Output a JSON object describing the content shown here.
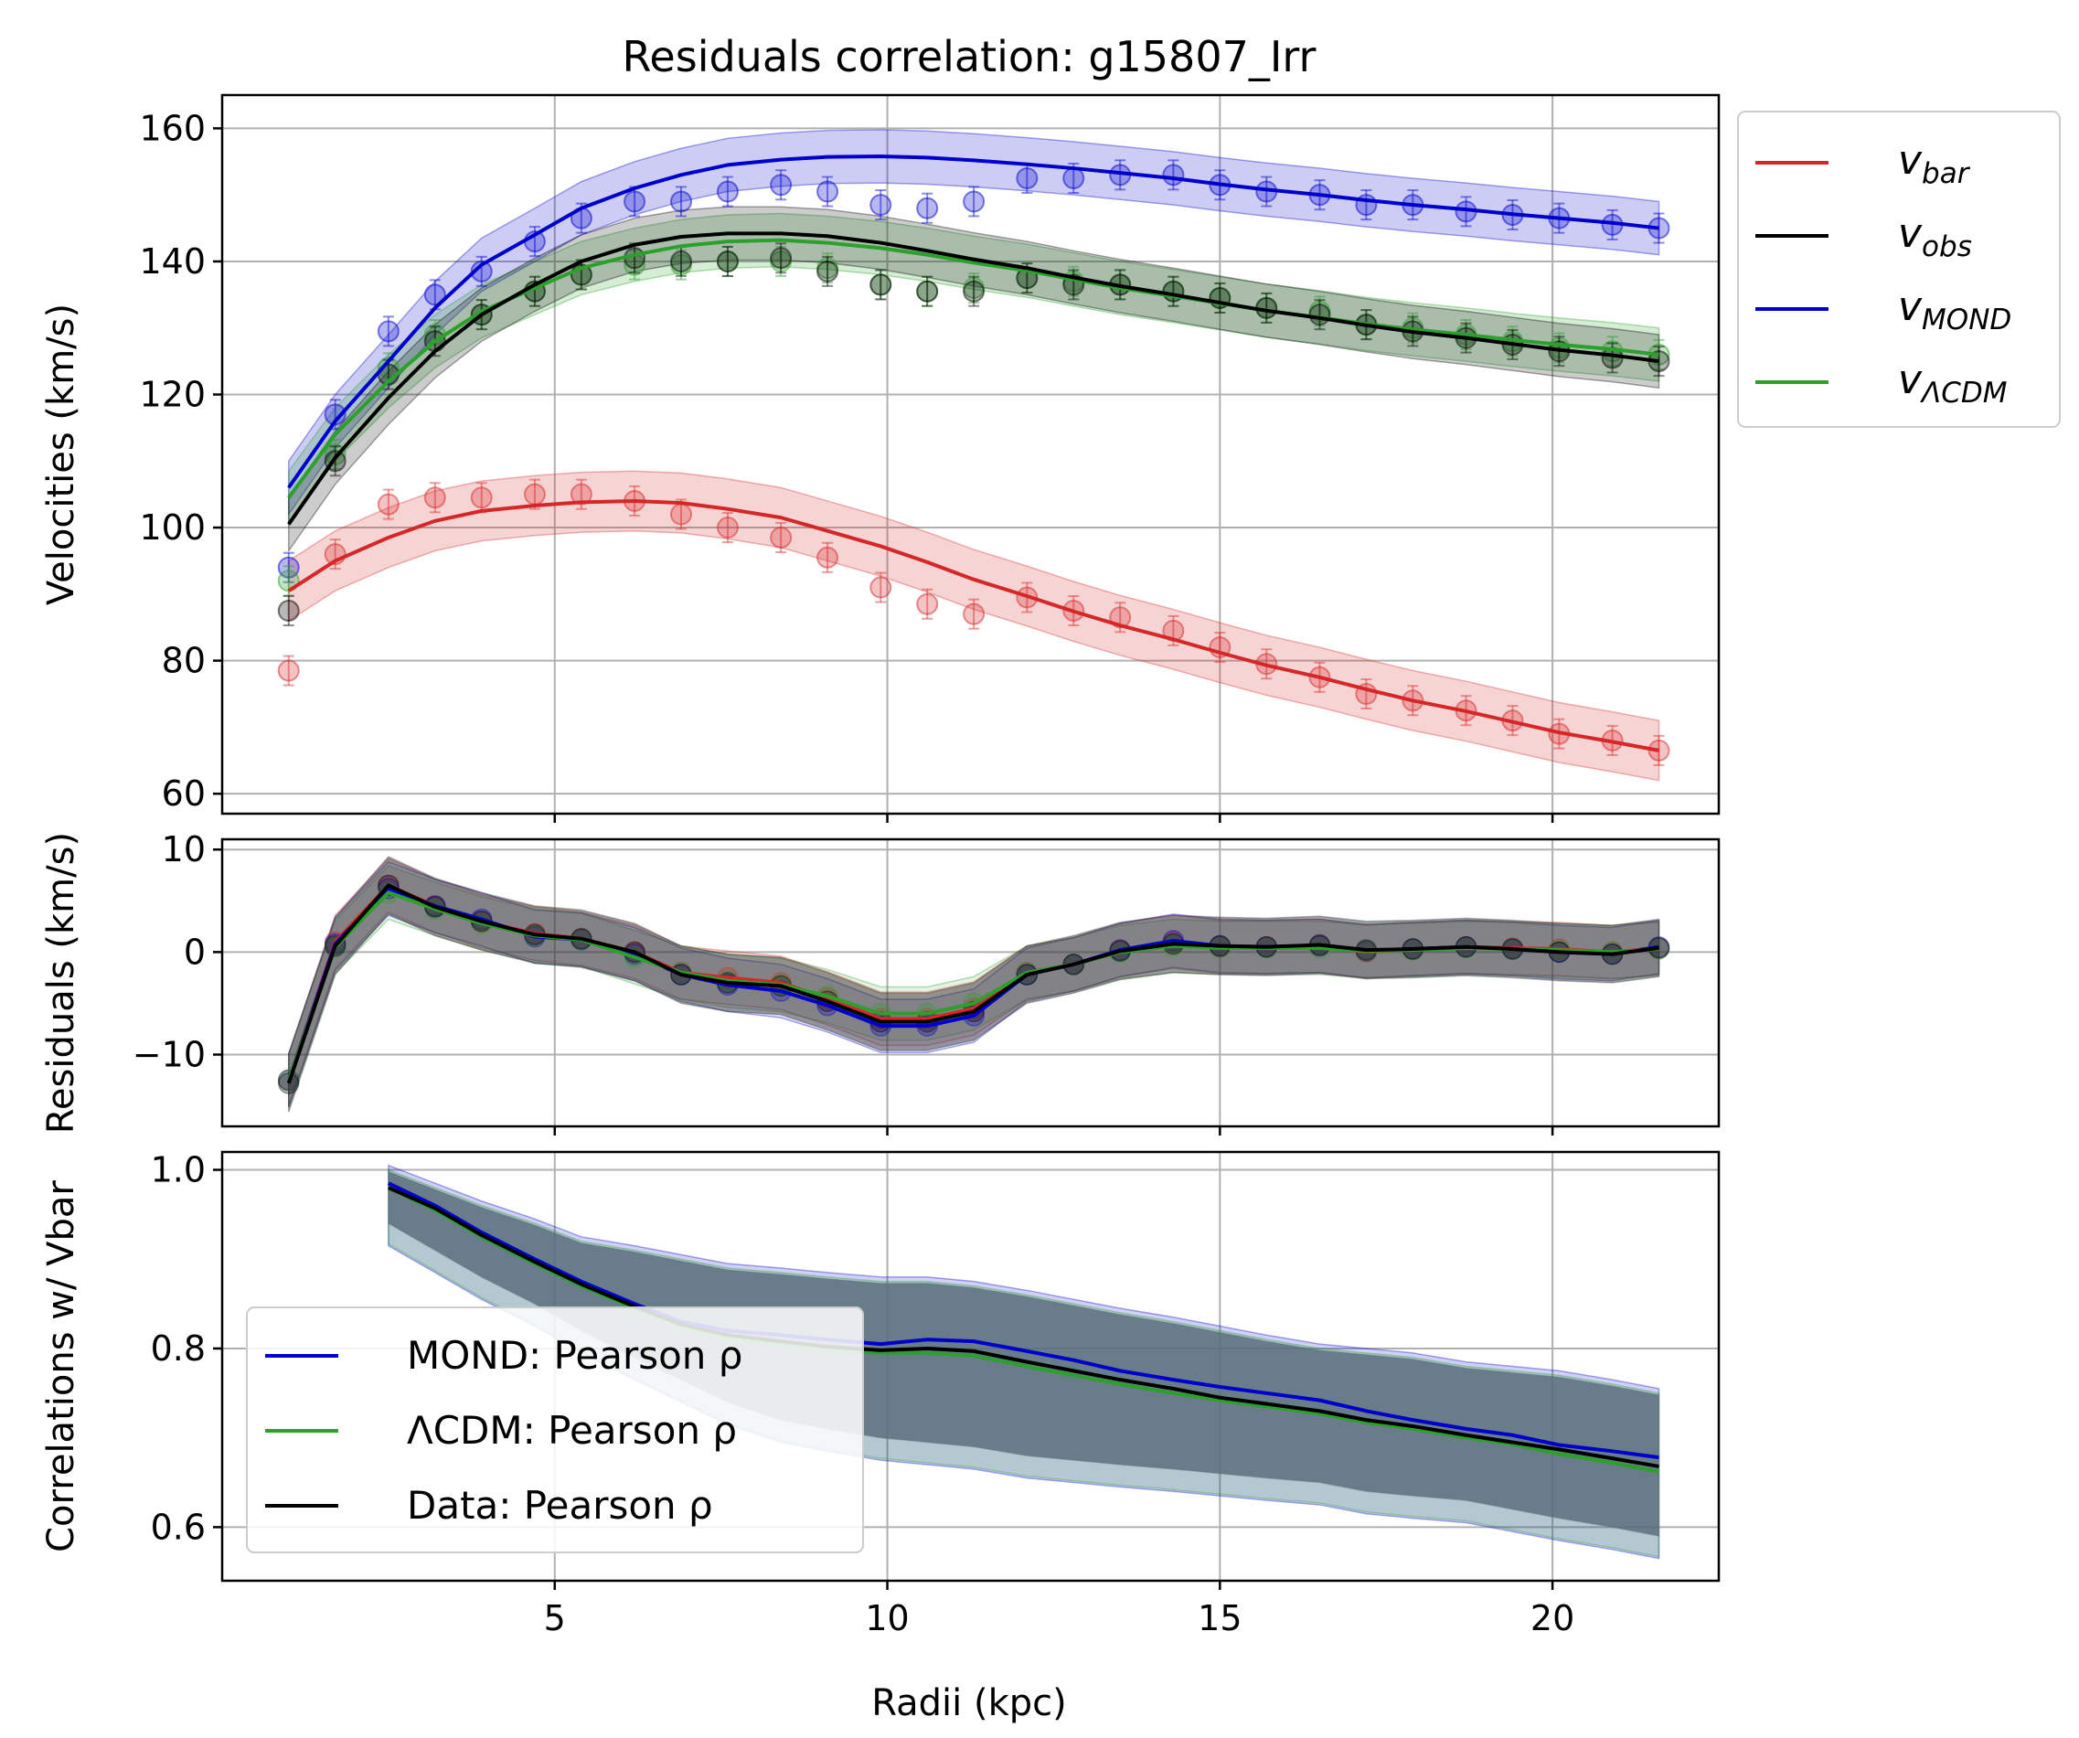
{
  "title": "Residuals correlation: g15807_Irr",
  "colors": {
    "bar": "#d62728",
    "obs": "#000000",
    "mond": "#0000cc",
    "lcdm": "#2ca02c",
    "corr_fill": "#5a707c"
  },
  "legend_top": {
    "placement": "outside-right",
    "entries": [
      {
        "key": "bar",
        "base": "v",
        "sub": "bar"
      },
      {
        "key": "obs",
        "base": "v",
        "sub": "obs"
      },
      {
        "key": "mond",
        "base": "v",
        "sub": "MOND"
      },
      {
        "key": "lcdm",
        "base": "v",
        "sub": "ΛCDM"
      }
    ]
  },
  "legend_bottom": {
    "placement": "lower-left",
    "entries": [
      {
        "key": "mond",
        "label": "MOND: Pearson ρ"
      },
      {
        "key": "lcdm",
        "label": "ΛCDM: Pearson ρ"
      },
      {
        "key": "obs",
        "label": "Data: Pearson ρ"
      }
    ]
  },
  "chart_data": [
    {
      "type": "line",
      "ylabel": "Velocities (km/s)",
      "xlim": [
        0,
        22.5
      ],
      "ylim": [
        57,
        165
      ],
      "yticks": [
        60,
        80,
        100,
        120,
        140,
        160
      ],
      "xticks": [
        5,
        10,
        15,
        20
      ],
      "grid": true,
      "x": [
        1.0,
        1.7,
        2.5,
        3.2,
        3.9,
        4.7,
        5.4,
        6.2,
        6.9,
        7.6,
        8.4,
        9.1,
        9.9,
        10.6,
        11.3,
        12.1,
        12.8,
        13.5,
        14.3,
        15.0,
        15.7,
        16.5,
        17.2,
        17.9,
        18.7,
        19.4,
        20.1,
        20.9,
        21.6
      ],
      "series": [
        {
          "key": "mond",
          "points": [
            94,
            117,
            129.5,
            135,
            138.5,
            143,
            146.5,
            149,
            149,
            150.5,
            151.5,
            150.5,
            148.5,
            148,
            149,
            152.5,
            152.5,
            153,
            153,
            151.5,
            150.5,
            150,
            148.5,
            148.5,
            147.5,
            147,
            146.5,
            145.5,
            145
          ],
          "curve": [
            106,
            116,
            125,
            133,
            139.5,
            144,
            148,
            151,
            153,
            154.5,
            155.3,
            155.7,
            155.8,
            155.6,
            155.2,
            154.6,
            154,
            153.3,
            152.5,
            151.6,
            150.8,
            150,
            149.2,
            148.5,
            147.8,
            147.1,
            146.5,
            145.8,
            145
          ]
        },
        {
          "key": "lcdm",
          "points": [
            92,
            111,
            124,
            129,
            132,
            135.5,
            138,
            139.5,
            139.5,
            140,
            140,
            139,
            136.5,
            135.5,
            136,
            137.5,
            137,
            136.5,
            135.5,
            134.5,
            133,
            132.5,
            130.5,
            130,
            129,
            128,
            127,
            126.5,
            126
          ],
          "curve": [
            104.5,
            114,
            122,
            128,
            132.5,
            136,
            139,
            141,
            142.3,
            143,
            143.2,
            142.8,
            142,
            141,
            139.8,
            138.6,
            137.3,
            136,
            134.8,
            133.7,
            132.6,
            131.6,
            130.6,
            129.8,
            129,
            128.2,
            127.5,
            126.8,
            126
          ]
        },
        {
          "key": "obs",
          "points": [
            87.5,
            110,
            123,
            128,
            132,
            135.5,
            138,
            140.5,
            140,
            140,
            140.5,
            138.5,
            136.5,
            135.5,
            135.5,
            137.5,
            136.5,
            136.5,
            135.5,
            134.5,
            133,
            132,
            130.5,
            129.5,
            128.5,
            127.5,
            126.5,
            125.5,
            125
          ],
          "curve": [
            100.5,
            110.5,
            119.5,
            126.5,
            132,
            136.5,
            140,
            142.5,
            143.7,
            144.2,
            144.2,
            143.8,
            142.8,
            141.6,
            140.3,
            139,
            137.6,
            136.3,
            135,
            133.8,
            132.6,
            131.5,
            130.4,
            129.4,
            128.5,
            127.6,
            126.7,
            125.9,
            125
          ]
        },
        {
          "key": "bar",
          "points": [
            78.5,
            96,
            103.5,
            104.5,
            104.5,
            105,
            105,
            104,
            102,
            100,
            98.5,
            95.5,
            91,
            88.5,
            87,
            89.5,
            87.5,
            86.5,
            84.5,
            82,
            79.5,
            77.5,
            75,
            74,
            72.5,
            71,
            69,
            68,
            66.5
          ],
          "curve": [
            90.5,
            95,
            98.5,
            101,
            102.5,
            103.3,
            103.8,
            104,
            103.7,
            102.8,
            101.5,
            99.5,
            97.2,
            94.8,
            92.2,
            89.7,
            87.4,
            85.3,
            83.2,
            81.2,
            79.3,
            77.5,
            75.7,
            74,
            72.4,
            70.8,
            69.2,
            67.8,
            66.5
          ]
        }
      ]
    },
    {
      "type": "line",
      "ylabel": "Residuals (km/s)",
      "xlim": [
        0,
        22.5
      ],
      "ylim": [
        -17,
        11
      ],
      "yticks": [
        -10,
        0,
        10
      ],
      "ytick_labels": [
        "−10",
        "0",
        "10"
      ],
      "xticks": [
        5,
        10,
        15,
        20
      ],
      "grid": true,
      "x": [
        1.0,
        1.7,
        2.5,
        3.2,
        3.9,
        4.7,
        5.4,
        6.2,
        6.9,
        7.6,
        8.4,
        9.1,
        9.9,
        10.6,
        11.3,
        12.1,
        12.8,
        13.5,
        14.3,
        15.0,
        15.7,
        16.5,
        17.2,
        17.9,
        18.7,
        19.4,
        20.1,
        20.9,
        21.6
      ],
      "series": [
        {
          "key": "bar",
          "values": [
            -12.5,
            1,
            6.5,
            4.5,
            3,
            1.8,
            1.3,
            0,
            -2,
            -2.5,
            -3,
            -4.5,
            -6.5,
            -6.5,
            -5.5,
            -2,
            -1.2,
            0.2,
            1,
            0.5,
            0.5,
            0.6,
            0,
            0.3,
            0.5,
            0.4,
            0.3,
            0,
            0.4
          ]
        },
        {
          "key": "mond",
          "values": [
            -12.5,
            0.8,
            6.2,
            4.5,
            3.2,
            1.5,
            1.2,
            -0.2,
            -2.2,
            -3.2,
            -3.8,
            -5.2,
            -7.2,
            -7.2,
            -6.2,
            -2.2,
            -1.2,
            0.2,
            1.1,
            0.6,
            0.5,
            0.6,
            0.1,
            0.3,
            0.5,
            0.3,
            0,
            -0.2,
            0.5
          ]
        },
        {
          "key": "lcdm",
          "values": [
            -12.5,
            0.5,
            5.8,
            4.2,
            2.8,
            1.6,
            1.2,
            -0.5,
            -2,
            -2.8,
            -3.2,
            -4.3,
            -6,
            -6,
            -5,
            -2,
            -1.2,
            0,
            0.6,
            0.4,
            0.4,
            0.4,
            0.1,
            0.2,
            0.4,
            0.3,
            0.2,
            0,
            0.3
          ]
        },
        {
          "key": "obs",
          "values": [
            -12.8,
            0.6,
            6.5,
            4.4,
            3,
            1.7,
            1.3,
            0,
            -2.2,
            -3,
            -3.3,
            -4.8,
            -6.8,
            -6.8,
            -5.8,
            -2.2,
            -1.2,
            0.1,
            0.8,
            0.6,
            0.5,
            0.7,
            0.2,
            0.3,
            0.5,
            0.3,
            0,
            -0.2,
            0.4
          ]
        }
      ]
    },
    {
      "type": "line",
      "ylabel": "Correlations w/ Vbar",
      "xlabel": "Radii (kpc)",
      "xlim": [
        0,
        22.5
      ],
      "ylim": [
        0.54,
        1.02
      ],
      "yticks": [
        0.6,
        0.8,
        1.0
      ],
      "ytick_labels": [
        "0.6",
        "0.8",
        "1.0"
      ],
      "xticks": [
        5,
        10,
        15,
        20
      ],
      "grid": true,
      "x": [
        2.5,
        3.2,
        3.9,
        4.7,
        5.4,
        6.2,
        6.9,
        7.6,
        8.4,
        9.1,
        9.9,
        10.6,
        11.3,
        12.1,
        12.8,
        13.5,
        14.3,
        15.0,
        15.7,
        16.5,
        17.2,
        17.9,
        18.7,
        19.4,
        20.1,
        20.9,
        21.6
      ],
      "band": {
        "upper": [
          1.0,
          0.98,
          0.96,
          0.94,
          0.92,
          0.91,
          0.9,
          0.89,
          0.885,
          0.88,
          0.875,
          0.875,
          0.87,
          0.86,
          0.85,
          0.84,
          0.83,
          0.82,
          0.81,
          0.8,
          0.795,
          0.79,
          0.78,
          0.775,
          0.77,
          0.76,
          0.75
        ],
        "lower": [
          0.92,
          0.89,
          0.86,
          0.83,
          0.8,
          0.77,
          0.745,
          0.72,
          0.7,
          0.69,
          0.68,
          0.675,
          0.67,
          0.66,
          0.655,
          0.65,
          0.645,
          0.64,
          0.635,
          0.63,
          0.62,
          0.615,
          0.61,
          0.6,
          0.59,
          0.58,
          0.57
        ]
      },
      "series": [
        {
          "key": "mond",
          "values": [
            0.985,
            0.96,
            0.93,
            0.9,
            0.875,
            0.85,
            0.83,
            0.82,
            0.815,
            0.81,
            0.805,
            0.81,
            0.808,
            0.797,
            0.787,
            0.775,
            0.765,
            0.757,
            0.75,
            0.742,
            0.73,
            0.72,
            0.71,
            0.703,
            0.692,
            0.685,
            0.678
          ]
        },
        {
          "key": "lcdm",
          "values": [
            0.98,
            0.955,
            0.925,
            0.895,
            0.87,
            0.845,
            0.825,
            0.812,
            0.805,
            0.8,
            0.795,
            0.795,
            0.792,
            0.78,
            0.77,
            0.76,
            0.75,
            0.742,
            0.735,
            0.727,
            0.717,
            0.71,
            0.7,
            0.693,
            0.682,
            0.672,
            0.662
          ]
        },
        {
          "key": "obs",
          "values": [
            0.98,
            0.957,
            0.927,
            0.897,
            0.872,
            0.847,
            0.827,
            0.815,
            0.808,
            0.802,
            0.798,
            0.8,
            0.797,
            0.785,
            0.775,
            0.765,
            0.755,
            0.745,
            0.738,
            0.73,
            0.72,
            0.713,
            0.703,
            0.695,
            0.687,
            0.677,
            0.668
          ]
        }
      ]
    }
  ]
}
